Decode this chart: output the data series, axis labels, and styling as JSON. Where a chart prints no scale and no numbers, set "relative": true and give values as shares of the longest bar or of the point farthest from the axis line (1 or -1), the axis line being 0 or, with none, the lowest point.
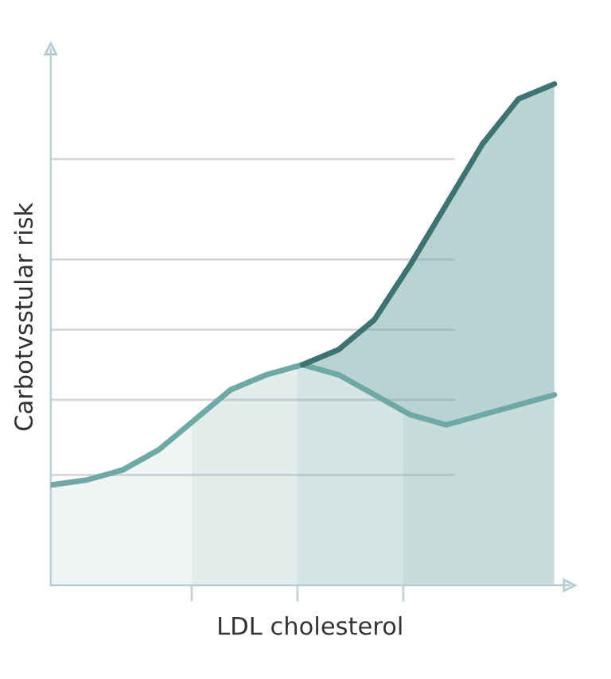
{
  "chart_data": {
    "type": "area",
    "relative": true,
    "xlabel": "LDL cholesterol",
    "ylabel": "Carbotvsstular risk",
    "categories": [
      null,
      null,
      null,
      null,
      null,
      null,
      null,
      null,
      null,
      null,
      null,
      null,
      null,
      null,
      null
    ],
    "series": [
      {
        "color": "#6fa8a5",
        "values": [
          0.2,
          0.21,
          0.23,
          0.27,
          0.33,
          0.39,
          0.42,
          0.44,
          0.42,
          0.38,
          0.34,
          0.32,
          0.34,
          0.36,
          0.38
        ]
      },
      {
        "color": "#3f7272",
        "values": [
          null,
          null,
          null,
          null,
          null,
          null,
          null,
          0.44,
          0.47,
          0.53,
          0.64,
          0.76,
          0.88,
          0.97,
          1.0
        ]
      }
    ],
    "ref_lines": [
      {
        "axis": "y",
        "value": 0.22,
        "color": "#d4d8db"
      },
      {
        "axis": "y",
        "value": 0.37,
        "color": "#d4d8db"
      },
      {
        "axis": "y",
        "value": 0.51,
        "color": "#d4d8db"
      },
      {
        "axis": "y",
        "value": 0.65,
        "color": "#d4d8db"
      },
      {
        "axis": "y",
        "value": 0.85,
        "color": "#d4d8db"
      }
    ],
    "legend": false
  }
}
